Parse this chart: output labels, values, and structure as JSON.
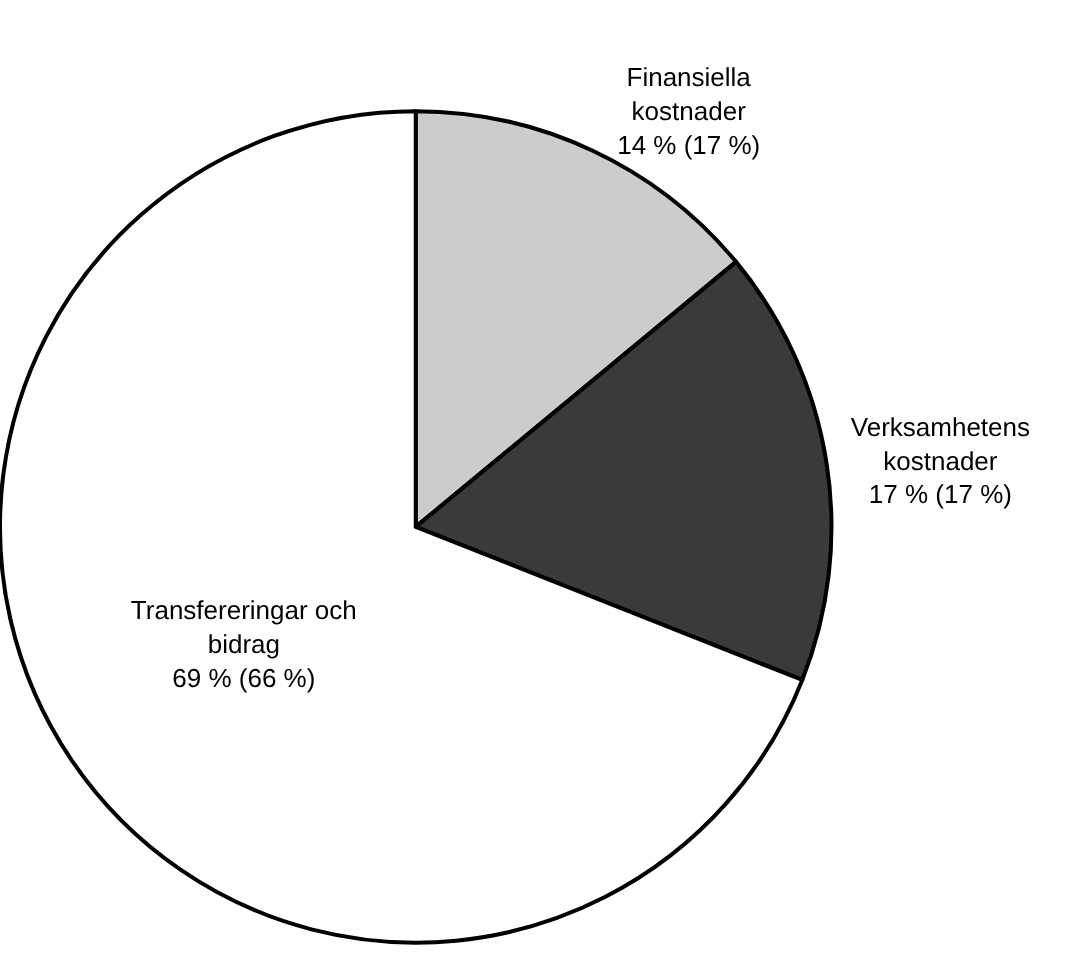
{
  "chart_data": {
    "type": "pie",
    "categories": [
      "Finansiella kostnader",
      "Verksamhetens kostnader",
      "Transfereringar och bidrag"
    ],
    "values": [
      14,
      17,
      69
    ],
    "value_labels": [
      "14 % (17 %)",
      "17 % (17 %)",
      "69 % (66 %)"
    ],
    "colors": [
      "#cccccc",
      "#3a3a3a",
      "#ffffff"
    ]
  }
}
